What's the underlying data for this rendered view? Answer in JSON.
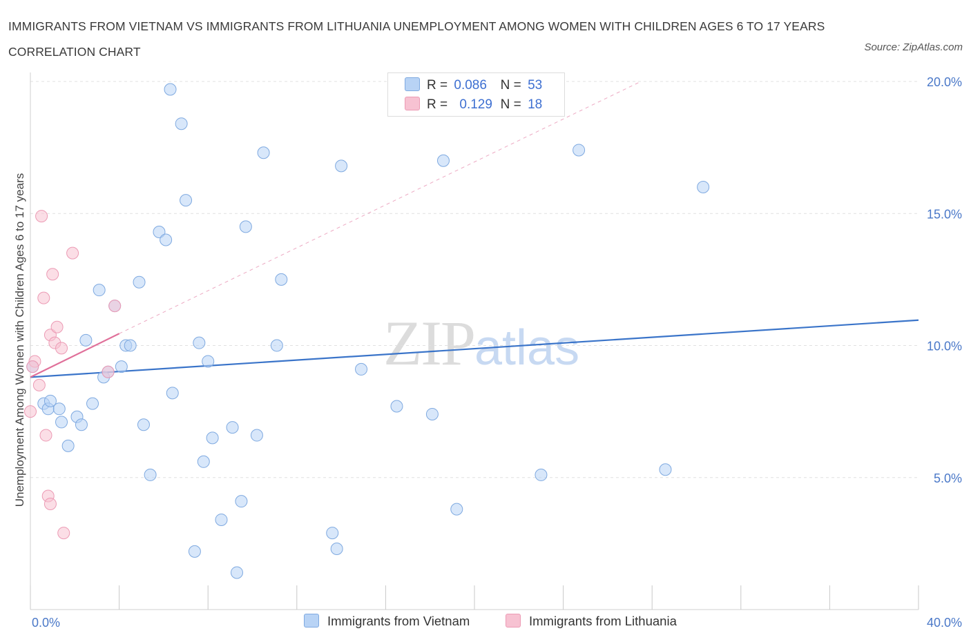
{
  "title": "IMMIGRANTS FROM VIETNAM VS IMMIGRANTS FROM LITHUANIA UNEMPLOYMENT AMONG WOMEN WITH CHILDREN AGES 6 TO 17 YEARS CORRELATION CHART",
  "source": "Source: ZipAtlas.com",
  "watermark": {
    "zip": "ZIP",
    "atlas": "atlas"
  },
  "legend": {
    "rows": [
      {
        "r_label": "R =",
        "r_value": "0.086",
        "n_label": "N =",
        "n_value": "53"
      },
      {
        "r_label": "R =",
        "r_value": "0.129",
        "n_label": "N =",
        "n_value": "18"
      }
    ]
  },
  "bottom_legend": [
    "Immigrants from Vietnam",
    "Immigrants from Lithuania"
  ],
  "colors": {
    "vietnam_fill": "#b8d3f5",
    "vietnam_stroke": "#7ea9e0",
    "vietnam_line": "#3a74c9",
    "lithuania_fill": "#f7c2d2",
    "lithuania_stroke": "#ec9ab4",
    "lithuania_line": "#e0709a",
    "grid": "#e0e0e0",
    "tick_text": "#4a78c8"
  },
  "chart_data": {
    "type": "scatter",
    "title": "IMMIGRANTS FROM VIETNAM VS IMMIGRANTS FROM LITHUANIA UNEMPLOYMENT AMONG WOMEN WITH CHILDREN AGES 6 TO 17 YEARS CORRELATION CHART",
    "xlabel": "",
    "ylabel": "Unemployment Among Women with Children Ages 6 to 17 years",
    "xlim": [
      0,
      40
    ],
    "ylim": [
      0,
      20
    ],
    "x_tick_labels": [
      "0.0%",
      "40.0%"
    ],
    "y_ticks": [
      5,
      10,
      15,
      20
    ],
    "y_tick_labels": [
      "5.0%",
      "10.0%",
      "15.0%",
      "20.0%"
    ],
    "grid": true,
    "legend_position": "top-center",
    "series": [
      {
        "name": "Immigrants from Vietnam",
        "R": 0.086,
        "N": 53,
        "trend": {
          "x": [
            0,
            40
          ],
          "y": [
            8.8,
            10.96
          ]
        },
        "points": [
          [
            0.1,
            9.2
          ],
          [
            0.6,
            7.8
          ],
          [
            0.8,
            7.6
          ],
          [
            0.9,
            7.9
          ],
          [
            1.3,
            7.6
          ],
          [
            1.4,
            7.1
          ],
          [
            1.7,
            6.2
          ],
          [
            2.1,
            7.3
          ],
          [
            2.3,
            7.0
          ],
          [
            2.5,
            10.2
          ],
          [
            2.8,
            7.8
          ],
          [
            3.1,
            12.1
          ],
          [
            3.3,
            8.8
          ],
          [
            3.5,
            9.0
          ],
          [
            3.8,
            11.5
          ],
          [
            4.1,
            9.2
          ],
          [
            4.3,
            10.0
          ],
          [
            4.5,
            10.0
          ],
          [
            4.9,
            12.4
          ],
          [
            5.1,
            7.0
          ],
          [
            5.4,
            5.1
          ],
          [
            5.8,
            14.3
          ],
          [
            6.1,
            14.0
          ],
          [
            6.3,
            19.7
          ],
          [
            6.4,
            8.2
          ],
          [
            6.8,
            18.4
          ],
          [
            7.0,
            15.5
          ],
          [
            7.4,
            2.2
          ],
          [
            7.6,
            10.1
          ],
          [
            7.8,
            5.6
          ],
          [
            8.0,
            9.4
          ],
          [
            8.2,
            6.5
          ],
          [
            8.6,
            3.4
          ],
          [
            9.1,
            6.9
          ],
          [
            9.3,
            1.4
          ],
          [
            9.5,
            4.1
          ],
          [
            9.7,
            14.5
          ],
          [
            10.2,
            6.6
          ],
          [
            10.5,
            17.3
          ],
          [
            11.1,
            10.0
          ],
          [
            11.3,
            12.5
          ],
          [
            13.6,
            2.9
          ],
          [
            13.8,
            2.3
          ],
          [
            14.0,
            16.8
          ],
          [
            14.9,
            9.1
          ],
          [
            16.5,
            7.7
          ],
          [
            18.1,
            7.4
          ],
          [
            18.6,
            17.0
          ],
          [
            19.2,
            3.8
          ],
          [
            23.0,
            5.1
          ],
          [
            24.7,
            17.4
          ],
          [
            30.3,
            16.0
          ],
          [
            28.6,
            5.3
          ]
        ]
      },
      {
        "name": "Immigrants from Lithuania",
        "R": 0.129,
        "N": 18,
        "trend": {
          "x": [
            0,
            4.0
          ],
          "y": [
            8.8,
            10.45
          ]
        },
        "trend_extension": {
          "x": [
            4.0,
            27.5
          ],
          "y": [
            10.45,
            20.0
          ]
        },
        "points": [
          [
            0.0,
            7.5
          ],
          [
            0.2,
            9.4
          ],
          [
            0.4,
            8.5
          ],
          [
            0.5,
            14.9
          ],
          [
            0.6,
            11.8
          ],
          [
            0.7,
            6.6
          ],
          [
            0.8,
            4.3
          ],
          [
            0.9,
            4.0
          ],
          [
            0.9,
            10.4
          ],
          [
            1.0,
            12.7
          ],
          [
            1.1,
            10.1
          ],
          [
            1.2,
            10.7
          ],
          [
            1.4,
            9.9
          ],
          [
            1.5,
            2.9
          ],
          [
            1.9,
            13.5
          ],
          [
            3.5,
            9.0
          ],
          [
            3.8,
            11.5
          ],
          [
            0.1,
            9.2
          ]
        ]
      }
    ]
  }
}
